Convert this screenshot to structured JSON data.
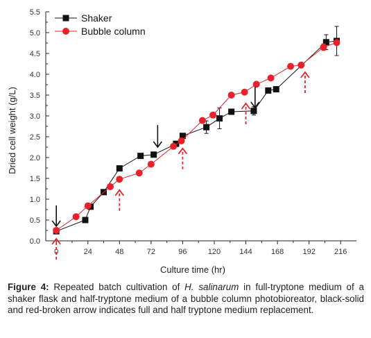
{
  "chart_data": {
    "type": "line",
    "xlabel": "Culture time (hr)",
    "ylabel": "Dried cell weight (g/L)",
    "xlim": [
      -8,
      228
    ],
    "ylim": [
      0,
      5.5
    ],
    "xticks": [
      0,
      24,
      48,
      72,
      96,
      120,
      144,
      168,
      192,
      216
    ],
    "yticks": [
      0.0,
      0.5,
      1.0,
      1.5,
      2.0,
      2.5,
      3.0,
      3.5,
      4.0,
      4.5,
      5.0,
      5.5
    ],
    "ytick_labels": [
      "0.0",
      "0.5",
      "1.0",
      "1.5",
      "2.0",
      "2.5",
      "3.0",
      "3.5",
      "4.0",
      "4.5",
      "5.0",
      "5.5"
    ],
    "legend": "top-left",
    "series": [
      {
        "name": "Shaker",
        "marker": "square",
        "color": "#111111",
        "x": [
          0,
          22,
          26,
          36,
          48,
          64,
          74,
          91,
          96,
          114,
          124,
          133,
          150,
          161,
          167,
          205,
          213
        ],
        "y": [
          0.23,
          0.5,
          0.82,
          1.17,
          1.74,
          2.04,
          2.07,
          2.33,
          2.52,
          2.73,
          2.94,
          3.1,
          3.12,
          3.61,
          3.64,
          4.77,
          4.8
        ],
        "err": [
          0.0,
          0.0,
          0.0,
          0.0,
          0.0,
          0.0,
          0.0,
          0.0,
          0.0,
          0.15,
          0.25,
          0.0,
          0.1,
          0.0,
          0.0,
          0.18,
          0.35
        ]
      },
      {
        "name": "Bubble column",
        "marker": "circle",
        "color": "#e8212a",
        "x": [
          0,
          15,
          24,
          41,
          48,
          63,
          72,
          89,
          95,
          111,
          119,
          133,
          143,
          152,
          163,
          178,
          186,
          203,
          213
        ],
        "y": [
          0.25,
          0.58,
          0.84,
          1.3,
          1.48,
          1.63,
          1.84,
          2.27,
          2.4,
          2.89,
          3.02,
          3.5,
          3.57,
          3.76,
          3.91,
          4.19,
          4.22,
          4.65,
          4.76
        ],
        "err": [
          0.0,
          0.0,
          0.0,
          0.0,
          0.0,
          0.0,
          0.0,
          0.0,
          0.0,
          0.0,
          0.0,
          0.0,
          0.0,
          0.0,
          0.0,
          0.0,
          0.0,
          0.08,
          0.0
        ]
      }
    ],
    "annotations": [
      {
        "type": "solid-arrow",
        "color": "#111111",
        "x": 0,
        "y_top": 0.85,
        "y_bottom": 0.35
      },
      {
        "type": "solid-arrow",
        "color": "#111111",
        "x": 77,
        "y_top": 2.78,
        "y_bottom": 2.25
      },
      {
        "type": "solid-arrow",
        "color": "#111111",
        "x": 151,
        "y_top": 3.7,
        "y_bottom": 3.2
      },
      {
        "type": "dashed-arrow",
        "color": "#e8212a",
        "x": 0,
        "y_top": 0.05,
        "y_bottom": -0.45
      },
      {
        "type": "dashed-arrow",
        "color": "#e8212a",
        "x": 48,
        "y_top": 1.22,
        "y_bottom": 0.72
      },
      {
        "type": "dashed-arrow",
        "color": "#e8212a",
        "x": 96,
        "y_top": 2.22,
        "y_bottom": 1.72
      },
      {
        "type": "dashed-arrow",
        "color": "#e8212a",
        "x": 144,
        "y_top": 3.3,
        "y_bottom": 2.8
      },
      {
        "type": "dashed-arrow",
        "color": "#e8212a",
        "x": 189,
        "y_top": 4.05,
        "y_bottom": 3.55
      }
    ]
  },
  "caption": {
    "label": "Figure 4:",
    "text_before": "Repeated batch cultivation of ",
    "species": "H. salinarum",
    "text_after": " in full-tryptone medium of a shaker flask and half-tryptone medium of a bubble column photobioreator, black-solid and red-broken arrow indicates full and half tryptone medium replacement."
  }
}
